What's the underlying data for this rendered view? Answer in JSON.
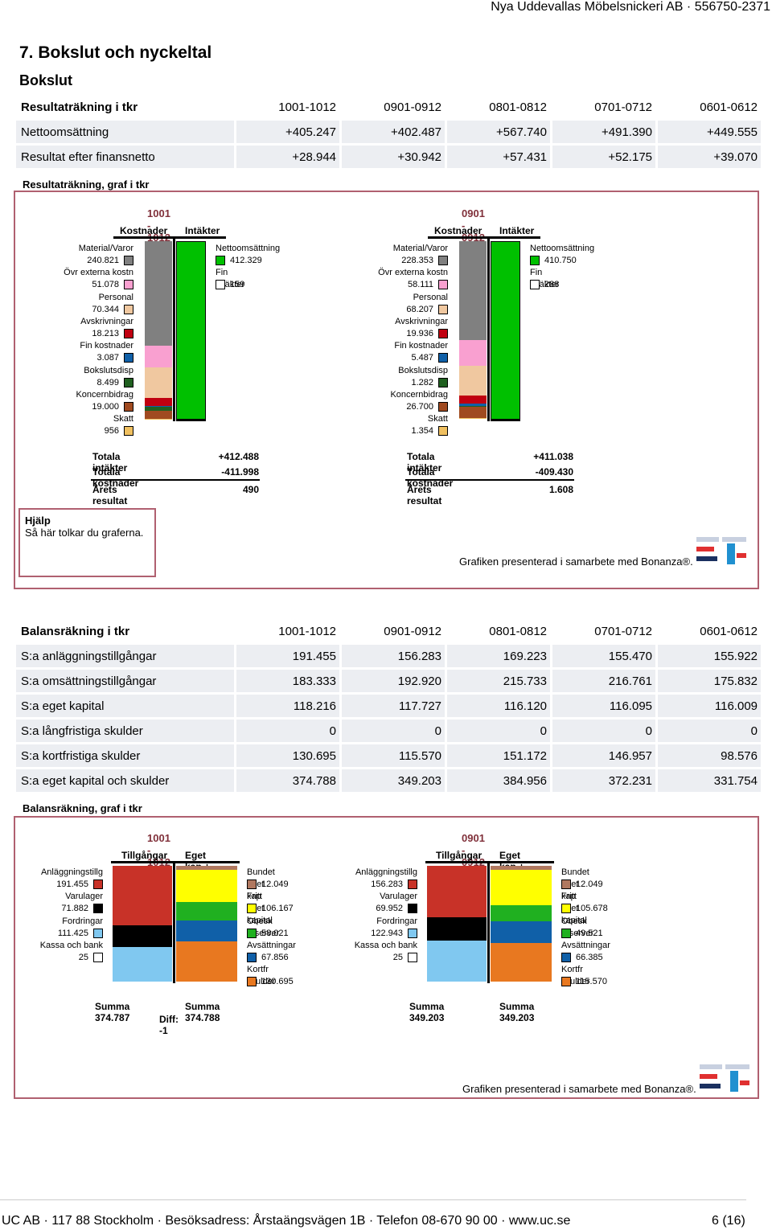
{
  "header": {
    "company": "Nya Uddevallas Möbelsnickeri AB · 556750-2371"
  },
  "section": {
    "title": "7. Bokslut och nyckeltal",
    "subtitle": "Bokslut"
  },
  "income_table": {
    "header": [
      "Resultaträkning i tkr",
      "1001-1012",
      "0901-0912",
      "0801-0812",
      "0701-0712",
      "0601-0612"
    ],
    "rows": [
      {
        "label": "Nettoomsättning",
        "values": [
          "+405.247",
          "+402.487",
          "+567.740",
          "+491.390",
          "+449.555"
        ]
      },
      {
        "label": "Resultat efter finansnetto",
        "values": [
          "+28.944",
          "+30.942",
          "+57.431",
          "+52.175",
          "+39.070"
        ]
      }
    ]
  },
  "income_graph": {
    "title": "Resultaträkning, graf i tkr",
    "col_cost": "Kostnader",
    "col_income": "Intäkter",
    "panels": [
      {
        "period": "1001 - 1012",
        "costs": [
          {
            "label": "Material/Varor",
            "value": "240.821",
            "color": "#808080"
          },
          {
            "label": "Övr externa kostn",
            "value": "51.078",
            "color": "#f9a0d0"
          },
          {
            "label": "Personal",
            "value": "70.344",
            "color": "#f0c8a0"
          },
          {
            "label": "Avskrivningar",
            "value": "18.213",
            "color": "#c00010"
          },
          {
            "label": "Fin kostnader",
            "value": "3.087",
            "color": "#1060a8"
          },
          {
            "label": "Bokslutsdisp",
            "value": "8.499",
            "color": "#206020"
          },
          {
            "label": "Koncernbidrag",
            "value": "19.000",
            "color": "#a04a20"
          },
          {
            "label": "Skatt",
            "value": "956",
            "color": "#f0c060"
          }
        ],
        "incomes": [
          {
            "label": "Nettoomsättning",
            "value": "412.329",
            "color": "#00c000"
          },
          {
            "label": "Fin intäkter",
            "value": "159",
            "color": "#ffffff"
          }
        ],
        "totals": {
          "income_label": "Totala intäkter",
          "income": "+412.488",
          "cost_label": "Totala kostnader",
          "cost": "-411.998",
          "result_label": "Årets resultat",
          "result": "490"
        }
      },
      {
        "period": "0901 - 0912",
        "costs": [
          {
            "label": "Material/Varor",
            "value": "228.353",
            "color": "#808080"
          },
          {
            "label": "Övr externa kostn",
            "value": "58.111",
            "color": "#f9a0d0"
          },
          {
            "label": "Personal",
            "value": "68.207",
            "color": "#f0c8a0"
          },
          {
            "label": "Avskrivningar",
            "value": "19.936",
            "color": "#c00010"
          },
          {
            "label": "Fin kostnader",
            "value": "5.487",
            "color": "#1060a8"
          },
          {
            "label": "Bokslutsdisp",
            "value": "1.282",
            "color": "#206020"
          },
          {
            "label": "Koncernbidrag",
            "value": "26.700",
            "color": "#a04a20"
          },
          {
            "label": "Skatt",
            "value": "1.354",
            "color": "#f0c060"
          }
        ],
        "incomes": [
          {
            "label": "Nettoomsättning",
            "value": "410.750",
            "color": "#00c000"
          },
          {
            "label": "Fin intäkter",
            "value": "288",
            "color": "#ffffff"
          }
        ],
        "totals": {
          "income_label": "Totala intäkter",
          "income": "+411.038",
          "cost_label": "Totala kostnader",
          "cost": "-409.430",
          "result_label": "Årets resultat",
          "result": "1.608"
        }
      }
    ]
  },
  "help": {
    "title": "Hjälp",
    "text": "Så här tolkar du graferna."
  },
  "credit": "Grafiken presenterad i samarbete med Bonanza®.",
  "balance_table": {
    "header": [
      "Balansräkning i tkr",
      "1001-1012",
      "0901-0912",
      "0801-0812",
      "0701-0712",
      "0601-0612"
    ],
    "rows": [
      {
        "label": "S:a anläggningstillgångar",
        "values": [
          "191.455",
          "156.283",
          "169.223",
          "155.470",
          "155.922"
        ]
      },
      {
        "label": "S:a omsättningstillgångar",
        "values": [
          "183.333",
          "192.920",
          "215.733",
          "216.761",
          "175.832"
        ]
      },
      {
        "label": "S:a eget kapital",
        "values": [
          "118.216",
          "117.727",
          "116.120",
          "116.095",
          "116.009"
        ]
      },
      {
        "label": "S:a långfristiga skulder",
        "values": [
          "0",
          "0",
          "0",
          "0",
          "0"
        ]
      },
      {
        "label": "S:a kortfristiga skulder",
        "values": [
          "130.695",
          "115.570",
          "151.172",
          "146.957",
          "98.576"
        ]
      },
      {
        "label": "S:a eget kapital och skulder",
        "values": [
          "374.788",
          "349.203",
          "384.956",
          "372.231",
          "331.754"
        ]
      }
    ]
  },
  "balance_graph": {
    "title": "Balansräkning, graf i tkr",
    "col_assets": "Tillgångar",
    "col_liab": "Eget kap + skulder",
    "panels": [
      {
        "period": "1001 - 1012",
        "assets": [
          {
            "label": "Anläggningstillg",
            "value": "191.455",
            "color": "#c83228"
          },
          {
            "label": "Varulager",
            "value": "71.882",
            "color": "#000000"
          },
          {
            "label": "Fordringar",
            "value": "111.425",
            "color": "#80c8f0"
          },
          {
            "label": "Kassa och bank",
            "value": "25",
            "color": "#ffffff"
          }
        ],
        "liabilities": [
          {
            "label": "Bundet eget kap",
            "value": "12.049",
            "color": "#b07860"
          },
          {
            "label": "Fritt eget kapital",
            "value": "106.167",
            "color": "#ffff00"
          },
          {
            "label": "Obesk reserver",
            "value": "58.021",
            "color": "#20b020"
          },
          {
            "label": "Avsättningar",
            "value": "67.856",
            "color": "#1060a8"
          },
          {
            "label": "Kortfr skulder",
            "value": "130.695",
            "color": "#e87820"
          }
        ],
        "sum_assets": "Summa 374.787",
        "sum_liab": "Summa 374.788",
        "diff": "Diff: -1"
      },
      {
        "period": "0901 - 0912",
        "assets": [
          {
            "label": "Anläggningstillg",
            "value": "156.283",
            "color": "#c83228"
          },
          {
            "label": "Varulager",
            "value": "69.952",
            "color": "#000000"
          },
          {
            "label": "Fordringar",
            "value": "122.943",
            "color": "#80c8f0"
          },
          {
            "label": "Kassa och bank",
            "value": "25",
            "color": "#ffffff"
          }
        ],
        "liabilities": [
          {
            "label": "Bundet eget kap",
            "value": "12.049",
            "color": "#b07860"
          },
          {
            "label": "Fritt eget kapital",
            "value": "105.678",
            "color": "#ffff00"
          },
          {
            "label": "Obesk reserver",
            "value": "49.521",
            "color": "#20b020"
          },
          {
            "label": "Avsättningar",
            "value": "66.385",
            "color": "#1060a8"
          },
          {
            "label": "Kortfr skulder",
            "value": "115.570",
            "color": "#e87820"
          }
        ],
        "sum_assets": "Summa 349.203",
        "sum_liab": "Summa 349.203",
        "diff": ""
      }
    ]
  },
  "footer": {
    "text": "UC AB · 117 88 Stockholm · Besöksadress: Årstaängsvägen 1B · Telefon 08-670 90 00 · www.uc.se",
    "page": "6 (16)"
  }
}
